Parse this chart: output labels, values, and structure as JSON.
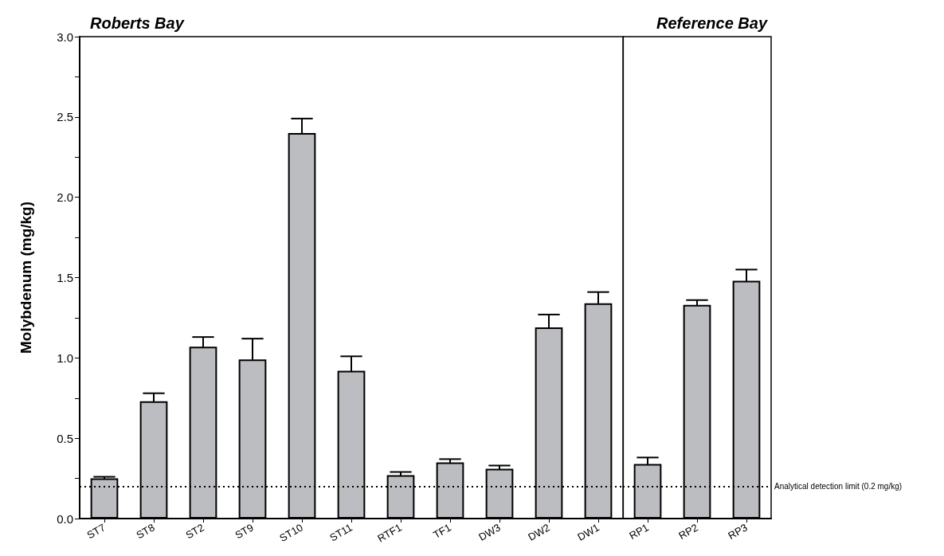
{
  "chart_data": [
    {
      "type": "bar",
      "title": "Roberts Bay",
      "ylabel": "Molybdenum (mg/kg)",
      "categories": [
        "ST7",
        "ST8",
        "ST2",
        "ST9",
        "ST10",
        "ST11",
        "RTF1",
        "TF1",
        "DW3",
        "DW2",
        "DW1"
      ],
      "values": [
        0.25,
        0.73,
        1.07,
        0.99,
        2.4,
        0.92,
        0.27,
        0.35,
        0.31,
        1.19,
        1.34
      ],
      "errors": [
        0.01,
        0.05,
        0.06,
        0.13,
        0.09,
        0.09,
        0.02,
        0.02,
        0.02,
        0.08,
        0.07
      ],
      "color": "#bcbdc1",
      "ylim": [
        0,
        3
      ],
      "yticks": [
        {
          "value": 0,
          "label": "0.0"
        },
        {
          "value": 0.25,
          "label": null
        },
        {
          "value": 0.5,
          "label": "0.5"
        },
        {
          "value": 0.75,
          "label": null
        },
        {
          "value": 1,
          "label": "1.0"
        },
        {
          "value": 1.25,
          "label": null
        },
        {
          "value": 1.5,
          "label": "1.5"
        },
        {
          "value": 1.75,
          "label": null
        },
        {
          "value": 2,
          "label": "2.0"
        },
        {
          "value": 2.25,
          "label": null
        },
        {
          "value": 2.5,
          "label": "2.5"
        },
        {
          "value": 2.75,
          "label": null
        },
        {
          "value": 3,
          "label": "3.0"
        }
      ],
      "ref_lines": [
        {
          "axis": "y",
          "value": 0.2,
          "line_style": "dotted",
          "color": "#000000"
        }
      ]
    },
    {
      "type": "bar",
      "title": "Reference Bay",
      "categories": [
        "RP1",
        "RP2",
        "RP3"
      ],
      "values": [
        0.34,
        1.33,
        1.48
      ],
      "errors": [
        0.04,
        0.03,
        0.07
      ],
      "color": "#bcbdc1",
      "ylim": [
        0,
        3
      ],
      "tick_labels": "x",
      "ref_lines": [
        {
          "axis": "y",
          "value": 0.2,
          "label": "Analytical detection limit (0.2 mg/kg)",
          "line_style": "dotted",
          "color": "#000000"
        }
      ]
    }
  ]
}
